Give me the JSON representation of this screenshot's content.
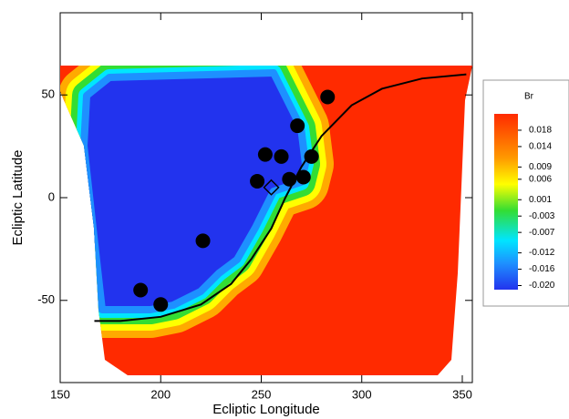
{
  "chart_data": {
    "type": "scatter",
    "xlabel": "Ecliptic Longitude",
    "ylabel": "Ecliptic Latitude",
    "xlim": [
      150,
      355
    ],
    "ylim": [
      -90,
      90
    ],
    "xticks": [
      150,
      200,
      250,
      300,
      350
    ],
    "yticks": [
      -50,
      0,
      50
    ],
    "series": [
      {
        "color": "#000000",
        "marker": "circle",
        "x": [
          190,
          200,
          221,
          248,
          252,
          260,
          264,
          268,
          271,
          275,
          283
        ],
        "values": [
          -45,
          -52,
          -21,
          8,
          21,
          20,
          9,
          35,
          10,
          20,
          49
        ]
      },
      {
        "color": "#000000",
        "marker": "diamond",
        "x": [
          255
        ],
        "values": [
          5
        ]
      }
    ],
    "line": {
      "color": "#000000",
      "x": [
        167,
        180,
        200,
        220,
        235,
        245,
        255,
        262,
        270,
        280,
        295,
        310,
        330,
        352
      ],
      "values": [
        -60,
        -60,
        -58,
        -52,
        -42,
        -30,
        -15,
        0,
        15,
        30,
        45,
        53,
        58,
        60
      ]
    },
    "colorbar": {
      "title": "Br",
      "clim": [
        -0.021,
        0.022
      ],
      "ticks": [
        0.018,
        0.014,
        0.009,
        0.006,
        0.001,
        -0.003,
        -0.007,
        -0.012,
        -0.016,
        {
          "value": -0.02,
          "label": "-0.020"
        }
      ]
    }
  }
}
